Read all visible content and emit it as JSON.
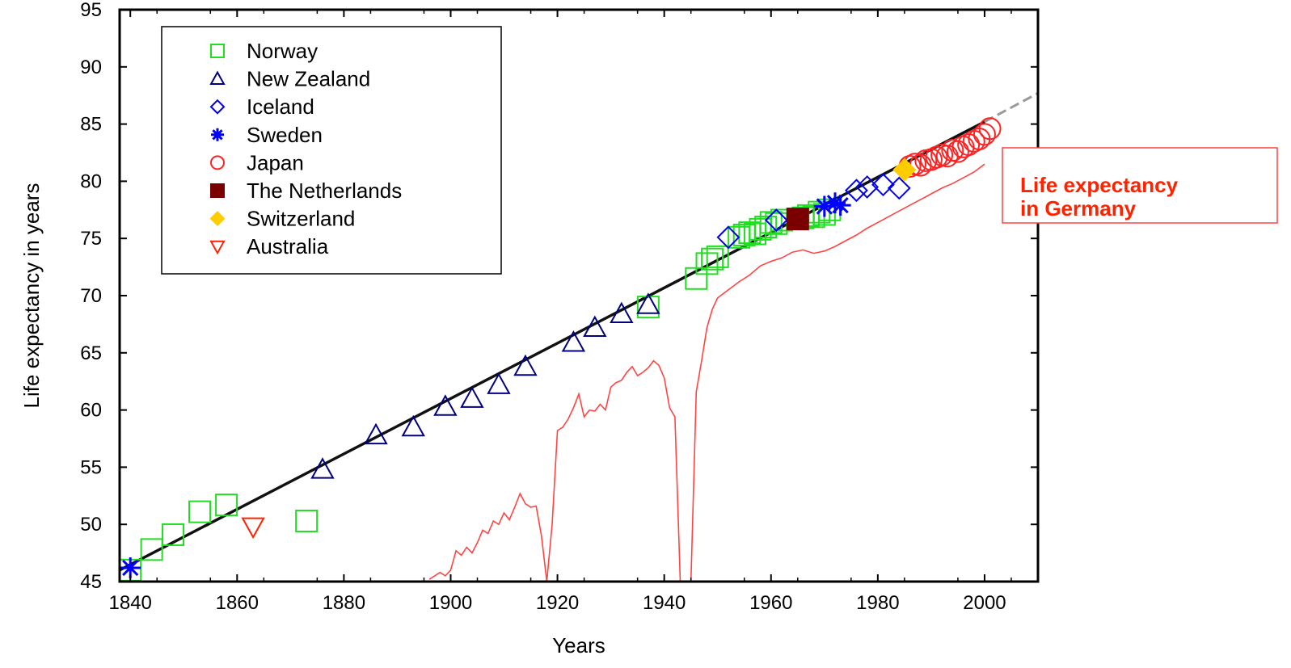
{
  "chart_data": {
    "type": "scatter",
    "xlabel": "Years",
    "ylabel": "Life expectancy in years",
    "xlim": [
      1838,
      2010
    ],
    "ylim": [
      45,
      95
    ],
    "xticks": [
      1840,
      1860,
      1880,
      1900,
      1920,
      1940,
      1960,
      1980,
      2000
    ],
    "yticks": [
      45,
      50,
      55,
      60,
      65,
      70,
      75,
      80,
      85,
      90,
      95
    ],
    "grid": false,
    "legend_position": "top-left",
    "annotation": [
      "Life expectancy",
      "in Germany"
    ],
    "trend_line": {
      "solid": [
        [
          1838,
          46.0
        ],
        [
          2000,
          85.2
        ]
      ],
      "dashed": [
        [
          2000,
          85.2
        ],
        [
          2010,
          87.7
        ]
      ]
    },
    "series": [
      {
        "name": "Norway",
        "marker": "square",
        "color": "#22dd22",
        "points": [
          [
            1840,
            46.0
          ],
          [
            1844,
            47.8
          ],
          [
            1848,
            49.1
          ],
          [
            1853,
            51.1
          ],
          [
            1858,
            51.7
          ],
          [
            1873,
            50.3
          ],
          [
            1937,
            69.0
          ],
          [
            1946,
            71.5
          ],
          [
            1948,
            72.8
          ],
          [
            1949,
            73.2
          ],
          [
            1950,
            73.4
          ],
          [
            1954,
            75.1
          ],
          [
            1955,
            75.3
          ],
          [
            1956,
            75.5
          ],
          [
            1957,
            75.4
          ],
          [
            1958,
            75.8
          ],
          [
            1959,
            76.0
          ],
          [
            1960,
            76.4
          ],
          [
            1961,
            76.3
          ],
          [
            1962,
            76.6
          ],
          [
            1966,
            76.8
          ],
          [
            1967,
            77.0
          ],
          [
            1968,
            76.9
          ],
          [
            1969,
            77.3
          ],
          [
            1970,
            77.1
          ],
          [
            1971,
            77.5
          ]
        ]
      },
      {
        "name": "New Zealand",
        "marker": "triangle-up",
        "color": "#000080",
        "points": [
          [
            1876,
            54.8
          ],
          [
            1886,
            57.8
          ],
          [
            1893,
            58.5
          ],
          [
            1899,
            60.3
          ],
          [
            1904,
            61.0
          ],
          [
            1909,
            62.2
          ],
          [
            1914,
            63.8
          ],
          [
            1923,
            65.9
          ],
          [
            1927,
            67.2
          ],
          [
            1932,
            68.4
          ],
          [
            1937,
            69.2
          ]
        ]
      },
      {
        "name": "Iceland",
        "marker": "diamond",
        "color": "#0000ee",
        "points": [
          [
            1952,
            75.1
          ],
          [
            1961,
            76.6
          ],
          [
            1976,
            79.2
          ],
          [
            1978,
            79.5
          ],
          [
            1981,
            79.7
          ],
          [
            1984,
            79.4
          ]
        ]
      },
      {
        "name": "Sweden",
        "marker": "asterisk",
        "color": "#0000ff",
        "points": [
          [
            1840,
            46.2
          ],
          [
            1970,
            77.8
          ],
          [
            1972,
            78.1
          ],
          [
            1973,
            77.9
          ]
        ]
      },
      {
        "name": "Japan",
        "marker": "circle",
        "color": "#ff2222",
        "points": [
          [
            1986,
            81.3
          ],
          [
            1987,
            81.5
          ],
          [
            1988,
            81.4
          ],
          [
            1989,
            81.8
          ],
          [
            1990,
            81.9
          ],
          [
            1991,
            82.1
          ],
          [
            1992,
            82.3
          ],
          [
            1993,
            82.2
          ],
          [
            1994,
            82.7
          ],
          [
            1995,
            82.6
          ],
          [
            1996,
            83.0
          ],
          [
            1997,
            83.2
          ],
          [
            1998,
            83.5
          ],
          [
            1999,
            83.7
          ],
          [
            2000,
            84.1
          ],
          [
            2001,
            84.6
          ]
        ]
      },
      {
        "name": "The Netherlands",
        "marker": "square-filled",
        "color": "#7a0000",
        "points": [
          [
            1965,
            76.7
          ]
        ]
      },
      {
        "name": "Switzerland",
        "marker": "diamond-filled",
        "color": "#ffcc00",
        "points": [
          [
            1985,
            81.0
          ]
        ]
      },
      {
        "name": "Australia",
        "marker": "triangle-down",
        "color": "#ff2200",
        "points": [
          [
            1863,
            49.8
          ]
        ]
      },
      {
        "name": "Life expectancy in Germany",
        "marker": "line",
        "color": "#ff4444",
        "points": [
          [
            1896,
            45.2
          ],
          [
            1898,
            45.8
          ],
          [
            1899,
            45.5
          ],
          [
            1900,
            46.0
          ],
          [
            1901,
            47.7
          ],
          [
            1902,
            47.3
          ],
          [
            1903,
            48.0
          ],
          [
            1904,
            47.5
          ],
          [
            1905,
            48.4
          ],
          [
            1906,
            49.5
          ],
          [
            1907,
            49.2
          ],
          [
            1908,
            50.3
          ],
          [
            1909,
            50.0
          ],
          [
            1910,
            51.0
          ],
          [
            1911,
            50.4
          ],
          [
            1912,
            51.5
          ],
          [
            1913,
            52.7
          ],
          [
            1914,
            51.8
          ],
          [
            1915,
            51.5
          ],
          [
            1916,
            51.6
          ],
          [
            1917,
            49.0
          ],
          [
            1918,
            45.0
          ],
          [
            1919,
            50.0
          ],
          [
            1920,
            58.2
          ],
          [
            1921,
            58.5
          ],
          [
            1922,
            59.2
          ],
          [
            1923,
            60.2
          ],
          [
            1924,
            61.4
          ],
          [
            1925,
            59.4
          ],
          [
            1926,
            60.0
          ],
          [
            1927,
            59.9
          ],
          [
            1928,
            60.5
          ],
          [
            1929,
            60.0
          ],
          [
            1930,
            62.0
          ],
          [
            1931,
            62.4
          ],
          [
            1932,
            62.6
          ],
          [
            1933,
            63.3
          ],
          [
            1934,
            63.8
          ],
          [
            1935,
            63.0
          ],
          [
            1936,
            63.3
          ],
          [
            1937,
            63.7
          ],
          [
            1938,
            64.3
          ],
          [
            1939,
            63.9
          ],
          [
            1940,
            62.8
          ],
          [
            1941,
            60.2
          ],
          [
            1942,
            59.4
          ],
          [
            1943,
            45.0
          ],
          [
            1944,
            45.0
          ],
          [
            1945,
            45.0
          ],
          [
            1946,
            61.6
          ],
          [
            1947,
            64.3
          ],
          [
            1948,
            67.2
          ],
          [
            1949,
            68.8
          ],
          [
            1950,
            69.8
          ],
          [
            1952,
            70.5
          ],
          [
            1954,
            71.2
          ],
          [
            1956,
            71.8
          ],
          [
            1958,
            72.6
          ],
          [
            1960,
            73.0
          ],
          [
            1962,
            73.3
          ],
          [
            1964,
            73.8
          ],
          [
            1966,
            74.0
          ],
          [
            1968,
            73.7
          ],
          [
            1970,
            73.9
          ],
          [
            1972,
            74.3
          ],
          [
            1974,
            74.8
          ],
          [
            1976,
            75.3
          ],
          [
            1978,
            75.9
          ],
          [
            1980,
            76.4
          ],
          [
            1982,
            76.9
          ],
          [
            1984,
            77.4
          ],
          [
            1986,
            77.9
          ],
          [
            1988,
            78.4
          ],
          [
            1990,
            78.9
          ],
          [
            1992,
            79.4
          ],
          [
            1994,
            79.8
          ],
          [
            1996,
            80.3
          ],
          [
            1998,
            80.8
          ],
          [
            2000,
            81.5
          ]
        ]
      }
    ]
  }
}
